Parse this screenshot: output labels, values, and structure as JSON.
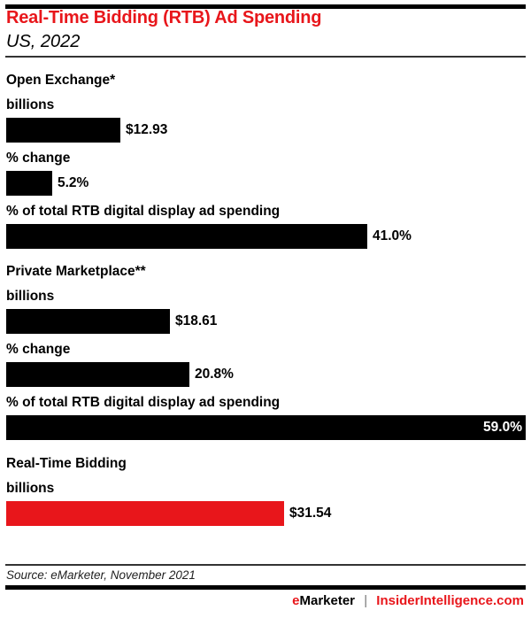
{
  "header": {
    "title": "Real-Time Bidding (RTB) Ad Spending",
    "subtitle": "US, 2022"
  },
  "colors": {
    "accent": "#e8161b",
    "bar": "#000000"
  },
  "chart_data": {
    "type": "bar",
    "title": "Real-Time Bidding (RTB) Ad Spending",
    "subtitle": "US, 2022",
    "groups": [
      {
        "name": "Open Exchange*",
        "metrics": [
          {
            "label": "billions",
            "value": 12.93,
            "display": "$12.93"
          },
          {
            "label": "% change",
            "value": 5.2,
            "display": "5.2%"
          },
          {
            "label": "% of total RTB digital display ad spending",
            "value": 41.0,
            "display": "41.0%"
          }
        ]
      },
      {
        "name": "Private Marketplace**",
        "metrics": [
          {
            "label": "billions",
            "value": 18.61,
            "display": "$18.61"
          },
          {
            "label": "% change",
            "value": 20.8,
            "display": "20.8%"
          },
          {
            "label": "% of total RTB digital display ad spending",
            "value": 59.0,
            "display": "59.0%"
          }
        ]
      },
      {
        "name": "Real-Time Bidding",
        "metrics": [
          {
            "label": "billions",
            "value": 31.54,
            "display": "$31.54",
            "highlight": true
          }
        ]
      }
    ],
    "xlim": [
      0,
      59.0
    ],
    "grid": false,
    "legend": "none"
  },
  "footer": {
    "source": "Source: eMarketer, November 2021",
    "brand_left": "eMarketer",
    "separator": "|",
    "brand_right": "InsiderIntelligence.com"
  }
}
